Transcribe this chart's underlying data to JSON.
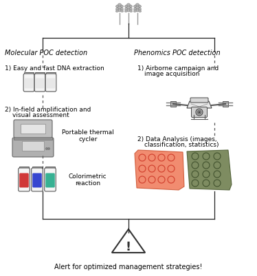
{
  "bg_color": "#ffffff",
  "fig_width": 3.74,
  "fig_height": 4.01,
  "dpi": 100,
  "title_text": "Alert for optimized management strategies!",
  "left_header": "Molecular POC detection",
  "right_header": "Phenomics POC detection",
  "left_step1": "1) Easy and fast DNA extraction",
  "left_step2": "2) In-field amplification and\n    visual assessment",
  "right_step1": "1) Airborne campaign and\n    image acquisition",
  "right_step2": "2) Data Analysis (images,\n    classification, statistics)",
  "label_thermal": "Portable thermal\ncycler",
  "label_colorimetric": "Colorimetric\nreaction",
  "line_color": "#222222",
  "dashed_color": "#555555",
  "text_color": "#000000",
  "wheat_color": "#aaaaaa",
  "wheat_edge": "#777777"
}
